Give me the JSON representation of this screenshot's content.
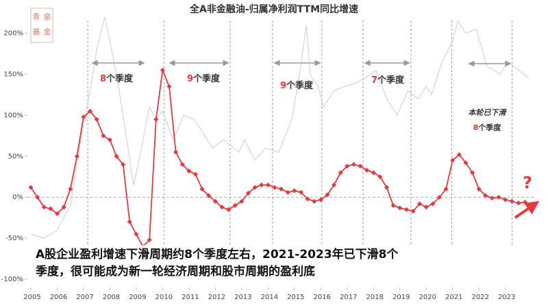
{
  "chart_data": {
    "type": "line",
    "title": "全A非金融油-归属净利润TTM同比增速",
    "watermark": [
      "青",
      "泉",
      "基",
      "金"
    ],
    "xlim": [
      2004.87,
      2024.1
    ],
    "ylim": [
      -110,
      228
    ],
    "xticks": [
      2005,
      2006,
      2007,
      2008,
      2009,
      2010,
      2011,
      2012,
      2013,
      2014,
      2015,
      2016,
      2017,
      2018,
      2019,
      2020,
      2021,
      2022,
      2023
    ],
    "yticks": [
      {
        "value": 200,
        "label": "200%"
      },
      {
        "value": 150,
        "label": "150%"
      },
      {
        "value": 100,
        "label": "100%"
      },
      {
        "value": 50,
        "label": "50%"
      },
      {
        "value": 0,
        "label": "0%"
      },
      {
        "value": -50,
        "label": "-50%"
      },
      {
        "value": -100,
        "label": "-100%"
      }
    ],
    "zero_line": true,
    "cycle_lines": [
      2007.16,
      2010.06,
      2012.56,
      2014.17,
      2016.04,
      2017.6,
      2019.42,
      2020.97,
      2023.26
    ],
    "series": [
      {
        "color": "#e8383d",
        "markers": true,
        "x": [
          2005,
          2005.25,
          2005.5,
          2005.75,
          2006,
          2006.25,
          2006.5,
          2006.75,
          2007,
          2007.25,
          2007.5,
          2007.75,
          2008,
          2008.25,
          2008.5,
          2008.75,
          2009,
          2009.25,
          2009.5,
          2009.75,
          2010,
          2010.25,
          2010.5,
          2010.75,
          2011,
          2011.25,
          2011.5,
          2011.75,
          2012,
          2012.25,
          2012.5,
          2012.75,
          2013,
          2013.25,
          2013.5,
          2013.75,
          2014,
          2014.25,
          2014.5,
          2014.75,
          2015,
          2015.25,
          2015.5,
          2015.75,
          2016,
          2016.25,
          2016.5,
          2016.75,
          2017,
          2017.25,
          2017.5,
          2017.75,
          2018,
          2018.25,
          2018.5,
          2018.75,
          2019,
          2019.25,
          2019.5,
          2019.75,
          2020,
          2020.25,
          2020.5,
          2020.75,
          2021,
          2021.25,
          2021.5,
          2021.75,
          2022,
          2022.25,
          2022.5,
          2022.75,
          2023,
          2023.25,
          2023.5,
          2023.75
        ],
        "values": [
          12,
          0,
          -12,
          -14,
          -20,
          -12,
          10,
          50,
          98,
          105,
          95,
          75,
          70,
          50,
          40,
          -30,
          -45,
          -60,
          -52,
          95,
          155,
          135,
          55,
          40,
          32,
          28,
          10,
          2,
          -5,
          -12,
          -15,
          -10,
          -5,
          5,
          12,
          15,
          15,
          12,
          10,
          6,
          8,
          6,
          -2,
          -5,
          -3,
          3,
          15,
          30,
          38,
          40,
          38,
          33,
          30,
          25,
          12,
          -10,
          -13,
          -15,
          -17,
          -8,
          -12,
          -8,
          0,
          10,
          45,
          52,
          42,
          30,
          10,
          2,
          -1,
          0,
          -3,
          -5,
          -7,
          -6
        ]
      },
      {
        "color": "#d9d4cc",
        "markers": false,
        "x": [
          2005,
          2005.5,
          2006,
          2006.5,
          2006.75,
          2007,
          2007.25,
          2007.5,
          2007.8,
          2008,
          2008.25,
          2008.5,
          2008.9,
          2009.2,
          2009.5,
          2009.75,
          2010,
          2010.4,
          2010.8,
          2011.2,
          2011.5,
          2011.9,
          2012.3,
          2012.9,
          2013.1,
          2013.5,
          2013.9,
          2014.4,
          2014.9,
          2015.2,
          2015.45,
          2015.6,
          2015.9,
          2016.1,
          2016.5,
          2016.9,
          2017.4,
          2017.9,
          2018.1,
          2018.5,
          2018.9,
          2019.3,
          2019.7,
          2020,
          2020.2,
          2020.6,
          2021,
          2021.2,
          2021.5,
          2021.9,
          2022.3,
          2022.8,
          2023.1,
          2023.5,
          2023.9
        ],
        "values": [
          -45,
          -50,
          -40,
          -10,
          40,
          90,
          130,
          180,
          220,
          190,
          150,
          100,
          15,
          60,
          110,
          95,
          105,
          70,
          100,
          95,
          80,
          60,
          70,
          55,
          70,
          45,
          60,
          55,
          95,
          150,
          210,
          150,
          135,
          110,
          130,
          135,
          140,
          150,
          155,
          120,
          100,
          130,
          120,
          135,
          125,
          165,
          190,
          215,
          200,
          205,
          160,
          150,
          165,
          155,
          145
        ]
      }
    ],
    "annotations": [
      {
        "num": "8",
        "text": "个季度"
      },
      {
        "num": "9",
        "text": "个季度"
      },
      {
        "num": "9",
        "text": "个季度"
      },
      {
        "num": "7",
        "text": "个季度"
      }
    ],
    "current_note": {
      "line1": "本轮已下滑",
      "num": "8",
      "text": "个季度"
    },
    "question": "?",
    "caption": [
      "A股企业盈利增速下滑周期约8个季度左右，2021-2023年已下滑8个",
      "季度，很可能成为新一轮经济周期和股市周期的盈利底"
    ]
  }
}
